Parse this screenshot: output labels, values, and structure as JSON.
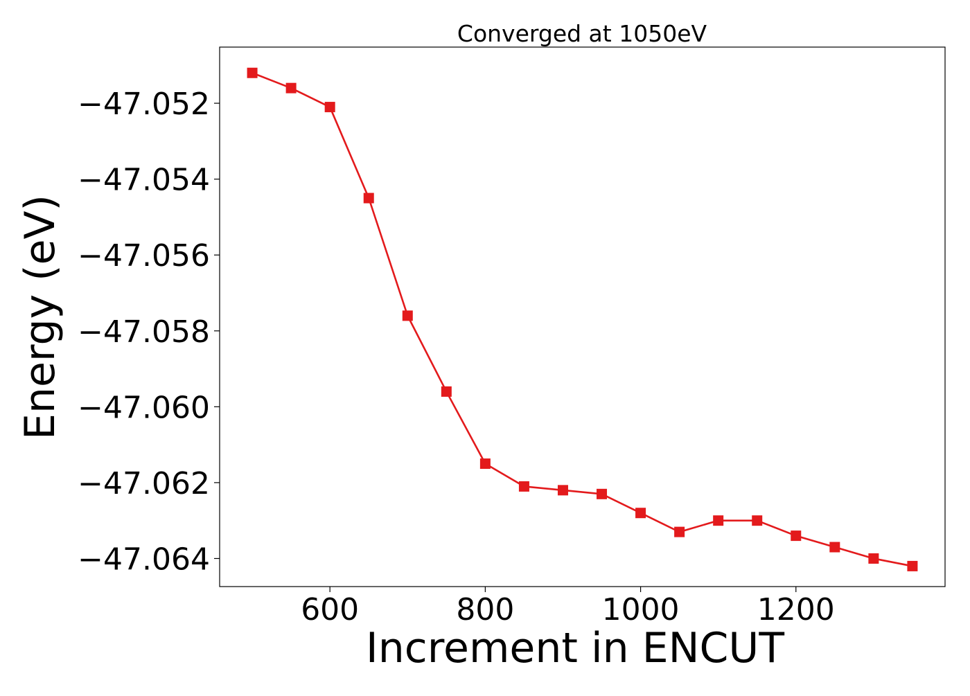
{
  "chart_data": {
    "type": "line",
    "title": "Converged at 1050eV",
    "xlabel": "Increment in ENCUT",
    "ylabel": "Energy (eV)",
    "xlim": [
      458,
      1392
    ],
    "ylim": [
      -47.06474,
      -47.05052
    ],
    "x_ticks": [
      600,
      800,
      1000,
      1200
    ],
    "y_ticks": [
      -47.052,
      -47.054,
      -47.056,
      -47.058,
      -47.06,
      -47.062,
      -47.064
    ],
    "y_tick_labels": [
      "−47.052",
      "−47.054",
      "−47.056",
      "−47.058",
      "−47.060",
      "−47.062",
      "−47.064"
    ],
    "grid": false,
    "series": [
      {
        "color": "#e31a1c",
        "marker": "square",
        "x": [
          500,
          550,
          600,
          650,
          700,
          750,
          800,
          850,
          900,
          950,
          1000,
          1050,
          1100,
          1150,
          1200,
          1250,
          1300,
          1350
        ],
        "y": [
          -47.0512,
          -47.0516,
          -47.0521,
          -47.0545,
          -47.0576,
          -47.0596,
          -47.0615,
          -47.0621,
          -47.0622,
          -47.0623,
          -47.0628,
          -47.0633,
          -47.063,
          -47.063,
          -47.0634,
          -47.0637,
          -47.064,
          -47.0642
        ]
      }
    ]
  }
}
